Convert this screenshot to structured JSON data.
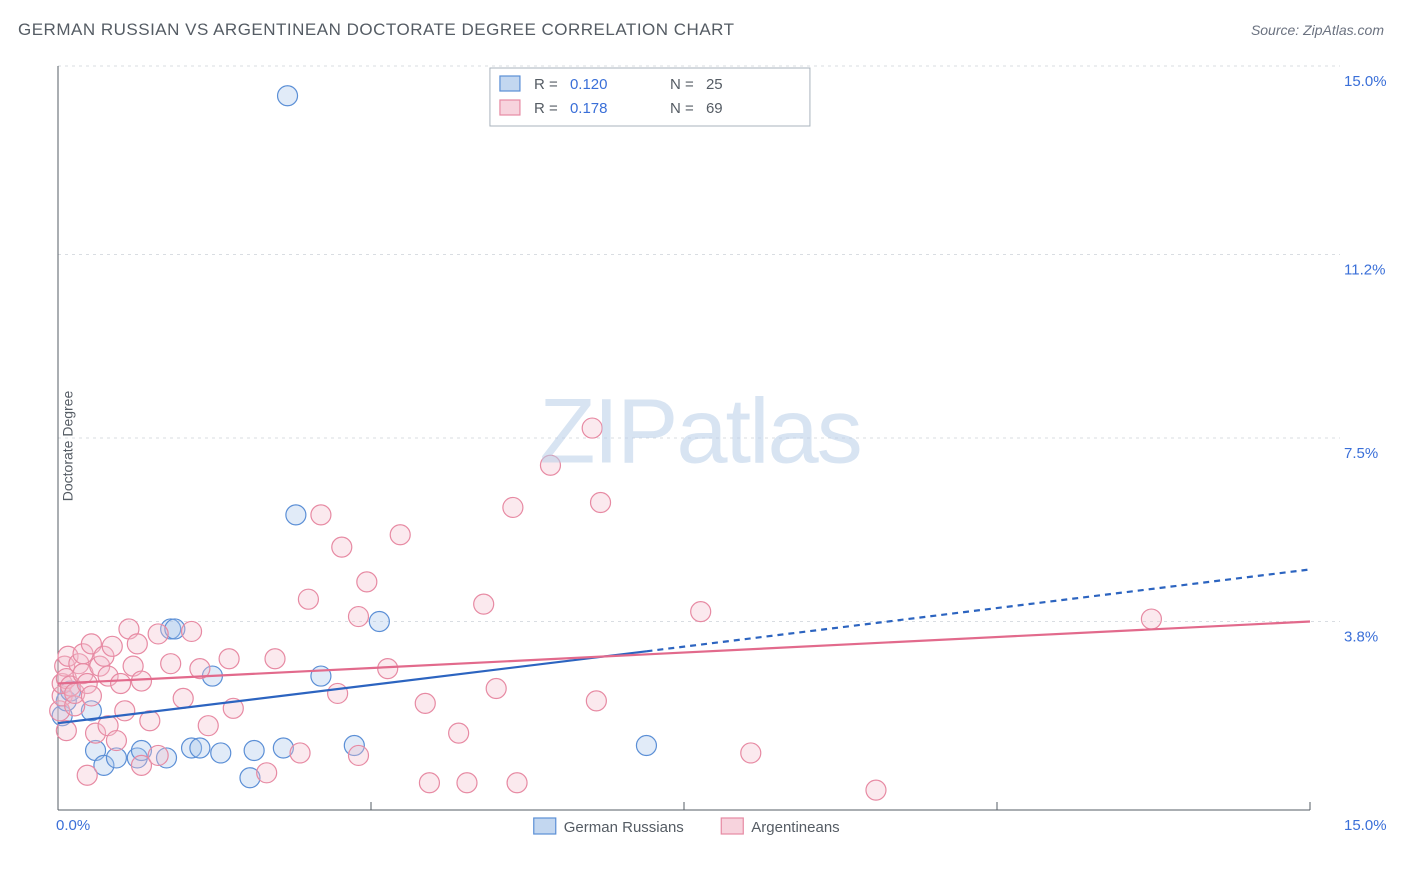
{
  "title": "GERMAN RUSSIAN VS ARGENTINEAN DOCTORATE DEGREE CORRELATION CHART",
  "source_prefix": "Source: ",
  "source_name": "ZipAtlas.com",
  "y_axis_label": "Doctorate Degree",
  "watermark_bold": "ZIP",
  "watermark_light": "atlas",
  "chart": {
    "type": "scatter",
    "xlim": [
      0,
      15
    ],
    "ylim": [
      0,
      15
    ],
    "x_ticks": [
      0,
      15
    ],
    "x_tick_labels": [
      "0.0%",
      "15.0%"
    ],
    "x_minor_ticks": [
      3.75,
      7.5,
      11.25
    ],
    "y_ticks": [
      3.8,
      7.5,
      11.2,
      15.0
    ],
    "y_tick_labels": [
      "3.8%",
      "7.5%",
      "11.2%",
      "15.0%"
    ],
    "background_color": "#ffffff",
    "grid_color": "#d9dde2",
    "grid_dash": "3,4",
    "axis_line_color": "#555c64",
    "marker_radius": 10,
    "marker_stroke_width": 1.2,
    "marker_fill_opacity": 0.35,
    "trend_line_width": 2.2,
    "trend_dash": "6,5",
    "series": [
      {
        "name": "German Russians",
        "legend_label": "German Russians",
        "color_fill": "#a9c6ea",
        "color_stroke": "#5b8fd6",
        "line_color": "#2c64c0",
        "r_value": "0.120",
        "n_value": "25",
        "points": [
          [
            0.05,
            1.9
          ],
          [
            0.1,
            2.2
          ],
          [
            0.15,
            2.4
          ],
          [
            0.4,
            2.0
          ],
          [
            0.45,
            1.2
          ],
          [
            0.55,
            0.9
          ],
          [
            0.7,
            1.05
          ],
          [
            0.95,
            1.05
          ],
          [
            1.0,
            1.2
          ],
          [
            1.3,
            1.05
          ],
          [
            1.35,
            3.65
          ],
          [
            1.4,
            3.65
          ],
          [
            1.6,
            1.25
          ],
          [
            1.7,
            1.25
          ],
          [
            1.85,
            2.7
          ],
          [
            1.95,
            1.15
          ],
          [
            2.3,
            0.65
          ],
          [
            2.35,
            1.2
          ],
          [
            2.7,
            1.25
          ],
          [
            2.75,
            14.4
          ],
          [
            2.85,
            5.95
          ],
          [
            3.15,
            2.7
          ],
          [
            3.55,
            1.3
          ],
          [
            3.85,
            3.8
          ],
          [
            7.05,
            1.3
          ]
        ],
        "trend": {
          "x1": 0,
          "y1": 1.75,
          "x2": 7.05,
          "y2": 3.2,
          "extend_x": 15,
          "extend_y": 4.85
        }
      },
      {
        "name": "Argentineans",
        "legend_label": "Argentineans",
        "color_fill": "#f4c0ce",
        "color_stroke": "#e78aa3",
        "line_color": "#e26a8c",
        "r_value": "0.178",
        "n_value": "69",
        "points": [
          [
            0.02,
            2.0
          ],
          [
            0.05,
            2.3
          ],
          [
            0.05,
            2.55
          ],
          [
            0.08,
            2.9
          ],
          [
            0.1,
            1.6
          ],
          [
            0.1,
            2.65
          ],
          [
            0.12,
            3.1
          ],
          [
            0.15,
            2.5
          ],
          [
            0.2,
            2.1
          ],
          [
            0.2,
            2.35
          ],
          [
            0.25,
            2.95
          ],
          [
            0.3,
            2.75
          ],
          [
            0.3,
            3.15
          ],
          [
            0.35,
            2.55
          ],
          [
            0.35,
            0.7
          ],
          [
            0.4,
            2.3
          ],
          [
            0.4,
            3.35
          ],
          [
            0.45,
            1.55
          ],
          [
            0.5,
            2.9
          ],
          [
            0.55,
            3.1
          ],
          [
            0.6,
            2.7
          ],
          [
            0.6,
            1.7
          ],
          [
            0.65,
            3.3
          ],
          [
            0.7,
            1.4
          ],
          [
            0.75,
            2.55
          ],
          [
            0.8,
            2.0
          ],
          [
            0.85,
            3.65
          ],
          [
            0.9,
            2.9
          ],
          [
            0.95,
            3.35
          ],
          [
            1.0,
            2.6
          ],
          [
            1.0,
            0.9
          ],
          [
            1.1,
            1.8
          ],
          [
            1.2,
            3.55
          ],
          [
            1.2,
            1.1
          ],
          [
            1.35,
            2.95
          ],
          [
            1.5,
            2.25
          ],
          [
            1.6,
            3.6
          ],
          [
            1.7,
            2.85
          ],
          [
            1.8,
            1.7
          ],
          [
            2.05,
            3.05
          ],
          [
            2.1,
            2.05
          ],
          [
            2.5,
            0.75
          ],
          [
            2.6,
            3.05
          ],
          [
            2.9,
            1.15
          ],
          [
            3.0,
            4.25
          ],
          [
            3.15,
            5.95
          ],
          [
            3.35,
            2.35
          ],
          [
            3.4,
            5.3
          ],
          [
            3.6,
            1.1
          ],
          [
            3.6,
            3.9
          ],
          [
            3.7,
            4.6
          ],
          [
            3.95,
            2.85
          ],
          [
            4.1,
            5.55
          ],
          [
            4.4,
            2.15
          ],
          [
            4.45,
            0.55
          ],
          [
            4.8,
            1.55
          ],
          [
            4.9,
            0.55
          ],
          [
            5.1,
            4.15
          ],
          [
            5.25,
            2.45
          ],
          [
            5.45,
            6.1
          ],
          [
            5.5,
            0.55
          ],
          [
            5.9,
            6.95
          ],
          [
            6.4,
            7.7
          ],
          [
            6.45,
            2.2
          ],
          [
            6.5,
            6.2
          ],
          [
            7.7,
            4.0
          ],
          [
            8.3,
            1.15
          ],
          [
            9.8,
            0.4
          ],
          [
            13.1,
            3.85
          ]
        ],
        "trend": {
          "x1": 0,
          "y1": 2.55,
          "x2": 15,
          "y2": 3.8
        }
      }
    ],
    "r_box": {
      "border_color": "#a9b3bd",
      "bg_color": "#ffffff",
      "label_color": "#555c64",
      "value_color": "#3a6fd8",
      "labels": {
        "R": "R =",
        "N": "N ="
      }
    },
    "bottom_legend": {
      "text_color": "#555c64"
    }
  }
}
